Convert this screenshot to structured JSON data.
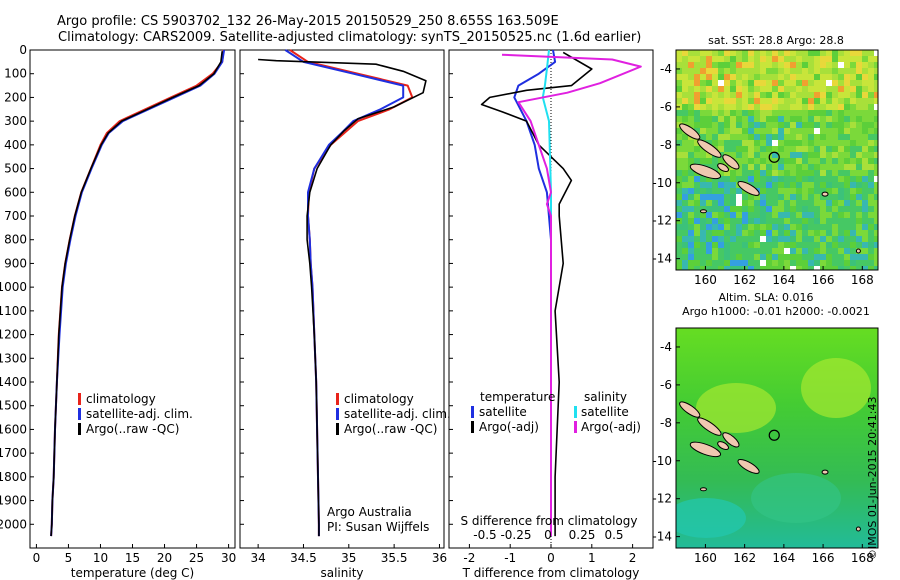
{
  "header": {
    "line1": "Argo profile: CS 5903702_132 26-May-2015 20150529_250 8.655S 163.509E",
    "line2": "Climatology: CARS2009. Satellite-adjusted climatology: synTS_20150525.nc (1.6d earlier)"
  },
  "colors": {
    "climatology": "#e8231a",
    "satellite": "#1f2fe0",
    "argo": "#000000",
    "sat_salinity": "#20e0f0",
    "argo_salinity": "#e020e0"
  },
  "chart_data": [
    {
      "type": "line",
      "panel": "temperature",
      "xlabel": "temperature (deg C)",
      "ylabel": "",
      "xlim": [
        -1,
        31
      ],
      "ylim": [
        2100,
        0
      ],
      "xticks": [
        0,
        5,
        10,
        15,
        20,
        25,
        30
      ],
      "yticks": [
        0,
        100,
        200,
        300,
        400,
        500,
        600,
        700,
        800,
        900,
        1000,
        1100,
        1200,
        1300,
        1400,
        1500,
        1600,
        1700,
        1800,
        1900,
        2000
      ],
      "legend": [
        "climatology",
        "satellite-adj. clim.",
        "Argo(..raw -QC)"
      ],
      "legend_placement": "lower-center",
      "series": [
        {
          "name": "climatology",
          "color": "#e8231a",
          "x": [
            29.2,
            29.0,
            27.5,
            25.0,
            21.0,
            17.0,
            13.0,
            11.0,
            10.0,
            8.5,
            7.0,
            6.0,
            5.2,
            4.5,
            4.0,
            3.5,
            3.2,
            2.9,
            2.7,
            2.5,
            2.4,
            2.3
          ],
          "depth": [
            0,
            50,
            100,
            150,
            200,
            250,
            300,
            350,
            400,
            500,
            600,
            700,
            800,
            900,
            1000,
            1200,
            1400,
            1600,
            1800,
            1900,
            2000,
            2050
          ]
        },
        {
          "name": "satellite-adj. clim.",
          "color": "#1f2fe0",
          "x": [
            29.3,
            29.0,
            27.8,
            25.6,
            21.6,
            17.5,
            13.5,
            11.3,
            10.2,
            8.6,
            7.1,
            6.1,
            5.3,
            4.6,
            4.1,
            3.6,
            3.2,
            2.9,
            2.7,
            2.5,
            2.4,
            2.3
          ],
          "depth": [
            0,
            50,
            100,
            150,
            200,
            250,
            300,
            350,
            400,
            500,
            600,
            700,
            800,
            900,
            1000,
            1200,
            1400,
            1600,
            1800,
            1900,
            2000,
            2050
          ]
        },
        {
          "name": "Argo(..raw -QC)",
          "color": "#000000",
          "x": [
            29.0,
            28.8,
            27.7,
            25.4,
            21.3,
            17.3,
            13.3,
            11.2,
            10.1,
            8.5,
            7.0,
            6.0,
            5.2,
            4.5,
            4.0,
            3.5,
            3.2,
            2.9,
            2.7,
            2.5,
            2.4,
            2.3
          ],
          "depth": [
            5,
            50,
            100,
            150,
            200,
            250,
            300,
            350,
            400,
            500,
            600,
            700,
            800,
            900,
            1000,
            1200,
            1400,
            1600,
            1800,
            1900,
            2000,
            2050
          ]
        }
      ]
    },
    {
      "type": "line",
      "panel": "salinity",
      "xlabel": "salinity",
      "ylabel": "",
      "xlim": [
        33.8,
        36.05
      ],
      "ylim": [
        2100,
        0
      ],
      "xticks": [
        34,
        34.5,
        35,
        35.5,
        36
      ],
      "legend": [
        "climatology",
        "satellite-adj. clim.",
        "Argo(..raw -QC)"
      ],
      "annotation": [
        "Argo Australia",
        "PI: Susan Wijffels"
      ],
      "series": [
        {
          "name": "climatology",
          "color": "#e8231a",
          "x": [
            34.35,
            34.55,
            35.1,
            35.65,
            35.7,
            35.45,
            35.1,
            34.95,
            34.8,
            34.62,
            34.56,
            34.55,
            34.57,
            34.58,
            34.6,
            34.62,
            34.64,
            34.65,
            34.66,
            34.67,
            34.67
          ],
          "depth": [
            0,
            50,
            100,
            150,
            200,
            250,
            300,
            350,
            400,
            500,
            600,
            700,
            800,
            900,
            1000,
            1200,
            1400,
            1600,
            1800,
            2000,
            2050
          ]
        },
        {
          "name": "satellite-adj. clim.",
          "color": "#1f2fe0",
          "x": [
            34.3,
            34.5,
            35.05,
            35.6,
            35.6,
            35.35,
            35.05,
            34.92,
            34.78,
            34.62,
            34.55,
            34.55,
            34.57,
            34.58,
            34.6,
            34.62,
            34.64,
            34.65,
            34.66,
            34.67,
            34.67
          ],
          "depth": [
            0,
            50,
            100,
            150,
            200,
            250,
            300,
            350,
            400,
            500,
            600,
            700,
            800,
            900,
            1000,
            1200,
            1400,
            1600,
            1800,
            2000,
            2050
          ]
        },
        {
          "name": "Argo(..raw -QC)",
          "color": "#000000",
          "x": [
            34.0,
            34.2,
            35.3,
            35.6,
            35.85,
            35.82,
            35.5,
            35.1,
            34.95,
            34.8,
            34.65,
            34.57,
            34.54,
            34.54,
            34.57,
            34.59,
            34.62,
            34.64,
            34.65,
            34.66,
            34.67,
            34.67
          ],
          "depth": [
            40,
            45,
            60,
            90,
            130,
            180,
            240,
            290,
            340,
            400,
            500,
            600,
            700,
            800,
            900,
            1000,
            1200,
            1400,
            1600,
            1800,
            2000,
            2050
          ]
        }
      ]
    },
    {
      "type": "line",
      "panel": "difference",
      "xlabel": "T difference from climatology",
      "top_label": "S difference from climatology",
      "xlim": [
        -2.5,
        2.5
      ],
      "ylim": [
        2100,
        0
      ],
      "xticks": [
        -2,
        -1,
        0,
        1,
        2
      ],
      "top_xticks": [
        "-0.5",
        "-0.25",
        "0",
        "0.25",
        "0.5"
      ],
      "legend_left": [
        "temperature",
        "satellite",
        "Argo(-adj)"
      ],
      "legend_right": [
        "salinity",
        "satellite",
        "Argo(-adj)"
      ],
      "series": [
        {
          "name": "satellite",
          "color": "#1f2fe0",
          "x": [
            0.05,
            0.1,
            -0.3,
            -0.8,
            -0.9,
            -0.6,
            -0.4,
            -0.3,
            -0.1,
            0.0,
            0.0,
            0.0,
            0.0
          ],
          "depth": [
            0,
            50,
            100,
            150,
            200,
            300,
            400,
            500,
            600,
            800,
            1200,
            1600,
            2050
          ]
        },
        {
          "name": "Argo(-adj)",
          "color": "#000000",
          "x": [
            0.3,
            1.0,
            0.5,
            -0.6,
            -1.5,
            -1.7,
            -1.2,
            -0.6,
            -0.3,
            0.3,
            0.5,
            0.2,
            0.2,
            0.3,
            0.1,
            0.2,
            0.1,
            0.1
          ],
          "depth": [
            10,
            80,
            150,
            170,
            200,
            230,
            260,
            300,
            400,
            500,
            550,
            650,
            700,
            900,
            1100,
            1400,
            1800,
            2050
          ]
        },
        {
          "name": "satellite",
          "color": "#20e0f0",
          "x": [
            -0.05,
            -0.1,
            -0.15,
            -0.2,
            -0.05,
            0.0,
            0.0,
            0.0
          ],
          "depth": [
            0,
            80,
            150,
            200,
            300,
            600,
            1200,
            2050
          ]
        },
        {
          "name": "Argo(-adj)",
          "color": "#e020e0",
          "x": [
            -1.2,
            1.5,
            2.2,
            1.2,
            0.4,
            -0.8,
            -0.5,
            -0.1,
            0.0,
            -0.1,
            0.0,
            0.0
          ],
          "depth": [
            20,
            40,
            70,
            140,
            180,
            220,
            300,
            500,
            600,
            650,
            700,
            2050
          ]
        }
      ]
    },
    {
      "type": "heatmap",
      "panel": "map-sst",
      "title": "sat. SST: 28.8 Argo: 28.8",
      "xlim": [
        158.5,
        168.8
      ],
      "ylim": [
        -14.6,
        -3.0
      ],
      "xticks": [
        160,
        162,
        164,
        166,
        168
      ],
      "yticks": [
        -4,
        -6,
        -8,
        -10,
        -12,
        -14
      ],
      "marker": {
        "lon": 163.509,
        "lat": -8.655
      }
    },
    {
      "type": "heatmap",
      "panel": "map-sla",
      "title": "Altim. SLA: 0.016",
      "subtitle": "Argo h1000: -0.01 h2000: -0.0021",
      "xlim": [
        158.5,
        168.8
      ],
      "ylim": [
        -14.6,
        -3.0
      ],
      "xticks": [
        160,
        162,
        164,
        166,
        168
      ],
      "yticks": [
        -4,
        -6,
        -8,
        -10,
        -12,
        -14
      ],
      "marker": {
        "lon": 163.509,
        "lat": -8.655
      }
    }
  ],
  "stamp": "©IMOS 01-Jun-2015 20:41:43"
}
